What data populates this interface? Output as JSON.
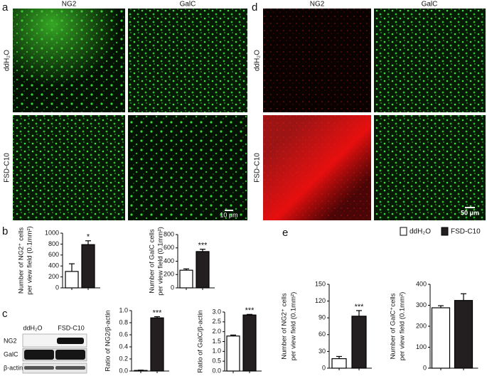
{
  "figure": {
    "panel_letters": [
      "a",
      "b",
      "c",
      "d",
      "e"
    ],
    "image_panels": [
      {
        "columns": [
          "NG2",
          "GalC"
        ],
        "rows": [
          "ddH₂O",
          "FSD-C10"
        ],
        "scale_bar": "10 μm"
      },
      {
        "columns": [
          "NG2",
          "GalC"
        ],
        "rows": [
          "ddH₂O",
          "FSD-C10"
        ],
        "scale_bar": "50 μm"
      }
    ],
    "blot": {
      "lanes": [
        "ddH₂O",
        "FSD-C10"
      ],
      "rows": [
        "NG2",
        "GalC",
        "β-actin"
      ]
    },
    "legend": [
      {
        "name": "ddH₂O",
        "color": "#ffffff"
      },
      {
        "name": "FSD-C10",
        "color": "#231f20"
      }
    ]
  },
  "chart_data": [
    {
      "type": "bar",
      "ylabel": [
        "Number of NG2⁺ cells",
        "per view field (0.1mm²)"
      ],
      "categories": [
        null,
        null
      ],
      "values": [
        300,
        790
      ],
      "errors": [
        140,
        70
      ],
      "sig_labels": [
        null,
        "*"
      ],
      "colors": [
        "#ffffff",
        "#231f20"
      ],
      "ylim": [
        0,
        1000
      ],
      "yticks": [
        0,
        200,
        400,
        600,
        800,
        1000
      ]
    },
    {
      "type": "bar",
      "ylabel": [
        "Number of GalC cells",
        "per view field (0.1mm²)"
      ],
      "categories": [
        null,
        null
      ],
      "values": [
        265,
        545
      ],
      "errors": [
        20,
        35
      ],
      "sig_labels": [
        null,
        "***"
      ],
      "colors": [
        "#ffffff",
        "#231f20"
      ],
      "ylim": [
        0,
        800
      ],
      "yticks": [
        0,
        200,
        400,
        600,
        800
      ]
    },
    {
      "type": "bar",
      "ylabel": [
        "Ratio of NG2/β-actin"
      ],
      "categories": [
        null,
        null
      ],
      "values": [
        0.01,
        0.88
      ],
      "errors": [
        0.005,
        0.02
      ],
      "sig_labels": [
        null,
        "***"
      ],
      "colors": [
        "#ffffff",
        "#231f20"
      ],
      "ylim": [
        0,
        1
      ],
      "yticks": [
        {
          "value": 0,
          "label": "0.0"
        },
        0.2,
        0.4,
        0.6,
        0.8,
        {
          "value": 1,
          "label": "1.0"
        }
      ]
    },
    {
      "type": "bar",
      "ylabel": [
        "Ratio of GalC/β-actin"
      ],
      "categories": [
        null,
        null
      ],
      "values": [
        1.78,
        2.85
      ],
      "errors": [
        0.05,
        0.03
      ],
      "sig_labels": [
        null,
        "***"
      ],
      "colors": [
        "#ffffff",
        "#231f20"
      ],
      "ylim": [
        0,
        3
      ],
      "yticks": [
        {
          "value": 0,
          "label": "0.0"
        },
        0.5,
        {
          "value": 1,
          "label": "1.0"
        },
        1.5,
        {
          "value": 2,
          "label": "2.0"
        },
        2.5,
        {
          "value": 3,
          "label": "3.0"
        }
      ]
    },
    {
      "type": "bar",
      "ylabel": [
        "Number of NG2⁺ cells",
        "per view field (0.1mm²)"
      ],
      "categories": [
        null,
        null
      ],
      "values": [
        17,
        93
      ],
      "errors": [
        4,
        10
      ],
      "sig_labels": [
        null,
        "***"
      ],
      "colors": [
        "#ffffff",
        "#231f20"
      ],
      "ylim": [
        0,
        150
      ],
      "yticks": [
        0,
        30,
        60,
        90,
        120,
        150
      ]
    },
    {
      "type": "bar",
      "ylabel": [
        "Number of GalC⁺cells",
        "per view field (0.1mm²)"
      ],
      "categories": [
        null,
        null
      ],
      "values": [
        288,
        323
      ],
      "errors": [
        10,
        32
      ],
      "sig_labels": [
        null,
        null
      ],
      "colors": [
        "#ffffff",
        "#231f20"
      ],
      "ylim": [
        0,
        400
      ],
      "yticks": [
        0,
        100,
        200,
        300,
        400
      ]
    }
  ]
}
